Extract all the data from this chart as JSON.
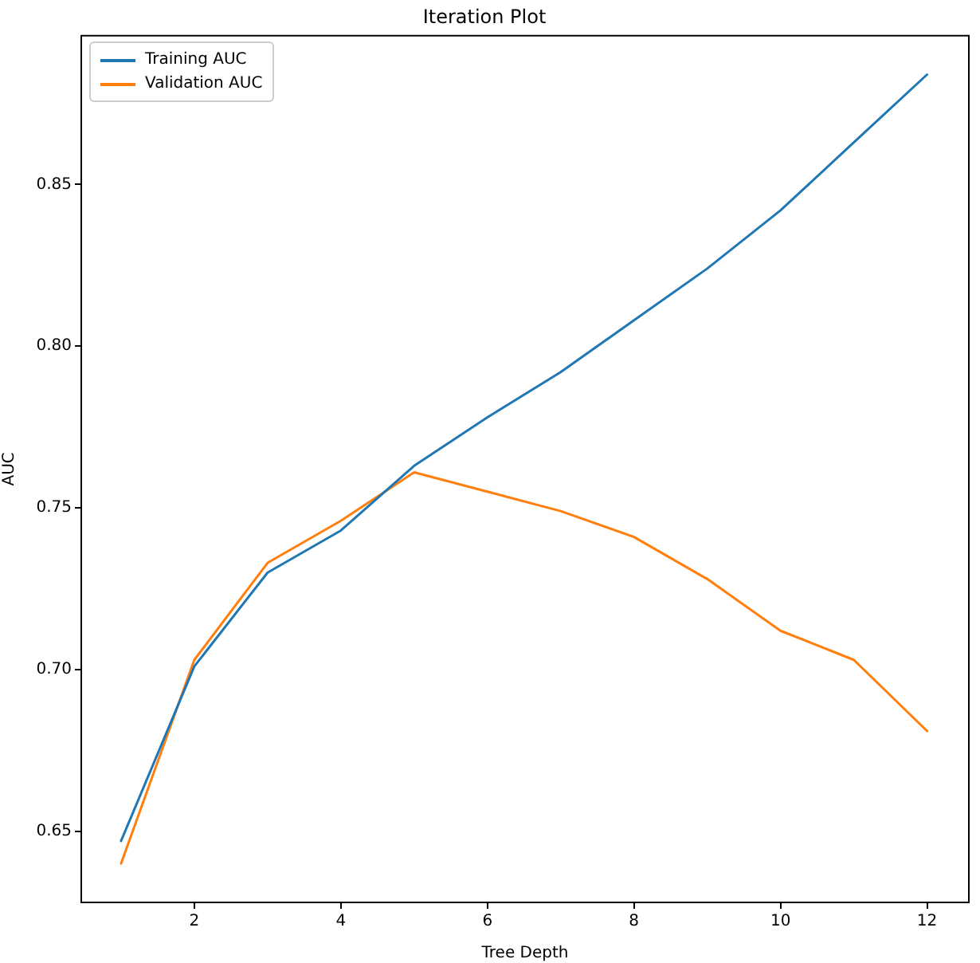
{
  "chart_data": {
    "type": "line",
    "title": "Iteration Plot",
    "xlabel": "Tree Depth",
    "ylabel": "AUC",
    "x": [
      1,
      2,
      3,
      4,
      5,
      6,
      7,
      8,
      9,
      10,
      11,
      12
    ],
    "series": [
      {
        "name": "Training AUC",
        "color": "#1f77b4",
        "values": [
          0.647,
          0.701,
          0.73,
          0.743,
          0.763,
          0.778,
          0.792,
          0.808,
          0.824,
          0.842,
          0.863,
          0.884
        ]
      },
      {
        "name": "Validation AUC",
        "color": "#ff7f0e",
        "values": [
          0.64,
          0.703,
          0.733,
          0.746,
          0.761,
          0.755,
          0.749,
          0.741,
          0.728,
          0.712,
          0.703,
          0.681
        ]
      }
    ],
    "xlim": [
      0.457,
      12.57
    ],
    "xticks": [
      2,
      4,
      6,
      8,
      10,
      12
    ],
    "ylim": [
      0.628,
      0.896
    ],
    "yticks": [
      {
        "value": 0.65,
        "label": "0.65"
      },
      {
        "value": 0.7,
        "label": "0.70"
      },
      {
        "value": 0.75,
        "label": "0.75"
      },
      {
        "value": 0.8,
        "label": "0.80"
      },
      {
        "value": 0.85,
        "label": "0.85"
      }
    ],
    "grid": false,
    "legend": "top left",
    "marker": "none",
    "line_style": "solid"
  }
}
